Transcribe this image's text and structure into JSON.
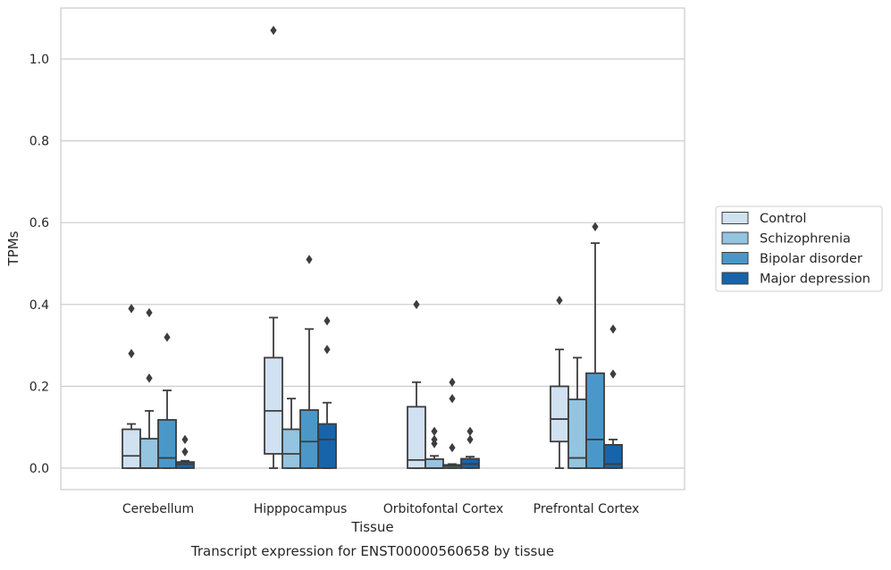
{
  "chart_data": {
    "type": "box",
    "title": "",
    "caption": "Transcript expression for ENST00000560658 by tissue",
    "xlabel": "Tissue",
    "ylabel": "TPMs",
    "ylim": [
      -0.05,
      1.13
    ],
    "yticks": [
      0.0,
      0.2,
      0.4,
      0.6,
      0.8,
      1.0
    ],
    "ytick_labels": [
      "0.0",
      "0.2",
      "0.4",
      "0.6",
      "0.8",
      "1.0"
    ],
    "grid": "horizontal",
    "legend_position": "right",
    "categories": [
      "Cerebellum",
      "Hipppocampus",
      "Orbitofontal Cortex",
      "Prefrontal Cortex"
    ],
    "series": [
      {
        "name": "Control",
        "color": "#d0e1f2",
        "boxes": [
          {
            "min": 0.0,
            "q1": 0.0,
            "median": 0.03,
            "q3": 0.095,
            "max": 0.108,
            "outliers": [
              0.28,
              0.39
            ]
          },
          {
            "min": 0.0,
            "q1": 0.035,
            "median": 0.14,
            "q3": 0.27,
            "max": 0.368,
            "outliers": [
              1.07
            ]
          },
          {
            "min": 0.0,
            "q1": 0.0,
            "median": 0.02,
            "q3": 0.15,
            "max": 0.21,
            "outliers": [
              0.4
            ]
          },
          {
            "min": 0.0,
            "q1": 0.065,
            "median": 0.12,
            "q3": 0.2,
            "max": 0.29,
            "outliers": [
              0.41
            ]
          }
        ]
      },
      {
        "name": "Schizophrenia",
        "color": "#94c4df",
        "boxes": [
          {
            "min": 0.0,
            "q1": 0.0,
            "median": 0.0,
            "q3": 0.072,
            "max": 0.14,
            "outliers": [
              0.22,
              0.38
            ]
          },
          {
            "min": 0.0,
            "q1": 0.0,
            "median": 0.035,
            "q3": 0.095,
            "max": 0.17,
            "outliers": []
          },
          {
            "min": 0.0,
            "q1": 0.0,
            "median": 0.0,
            "q3": 0.022,
            "max": 0.03,
            "outliers": [
              0.06,
              0.07,
              0.09
            ]
          },
          {
            "min": 0.0,
            "q1": 0.0,
            "median": 0.025,
            "q3": 0.168,
            "max": 0.27,
            "outliers": []
          }
        ]
      },
      {
        "name": "Bipolar disorder",
        "color": "#4a98c9",
        "boxes": [
          {
            "min": 0.0,
            "q1": 0.0,
            "median": 0.025,
            "q3": 0.118,
            "max": 0.19,
            "outliers": [
              0.32
            ]
          },
          {
            "min": 0.0,
            "q1": 0.0,
            "median": 0.065,
            "q3": 0.142,
            "max": 0.34,
            "outliers": [
              0.51
            ]
          },
          {
            "min": 0.0,
            "q1": 0.0,
            "median": 0.005,
            "q3": 0.008,
            "max": 0.01,
            "outliers": [
              0.05,
              0.17,
              0.21
            ]
          },
          {
            "min": 0.0,
            "q1": 0.0,
            "median": 0.07,
            "q3": 0.232,
            "max": 0.55,
            "outliers": [
              0.59
            ]
          }
        ]
      },
      {
        "name": "Major depression",
        "color": "#1764ab",
        "boxes": [
          {
            "min": 0.0,
            "q1": 0.0,
            "median": 0.01,
            "q3": 0.015,
            "max": 0.018,
            "outliers": [
              0.04,
              0.07
            ]
          },
          {
            "min": 0.0,
            "q1": 0.0,
            "median": 0.07,
            "q3": 0.108,
            "max": 0.16,
            "outliers": [
              0.29,
              0.36
            ]
          },
          {
            "min": 0.0,
            "q1": 0.0,
            "median": 0.01,
            "q3": 0.023,
            "max": 0.028,
            "outliers": [
              0.07,
              0.09
            ]
          },
          {
            "min": 0.0,
            "q1": 0.0,
            "median": 0.01,
            "q3": 0.057,
            "max": 0.07,
            "outliers": [
              0.23,
              0.34
            ]
          }
        ]
      }
    ]
  }
}
